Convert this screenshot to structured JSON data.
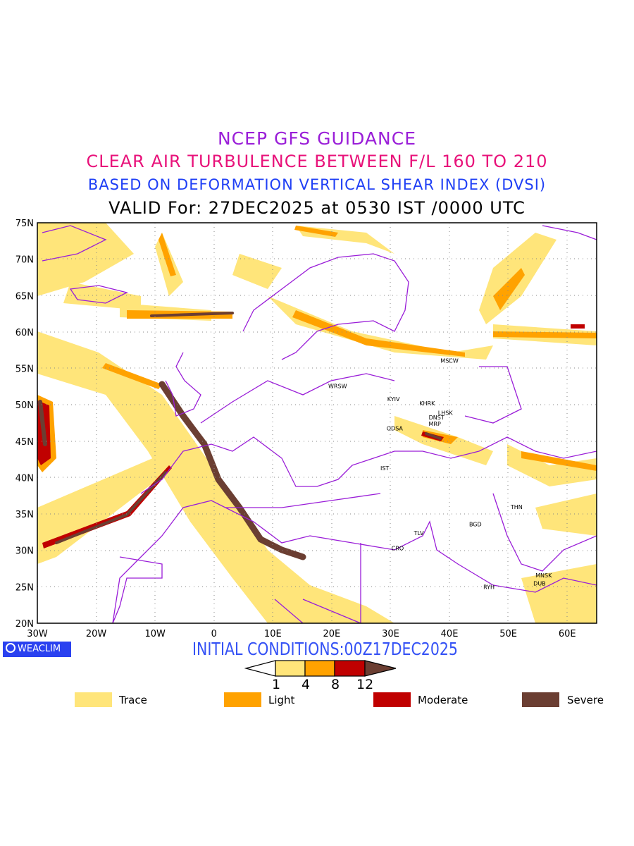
{
  "titles": {
    "line1": "NCEP GFS GUIDANCE",
    "line2": "CLEAR AIR TURBULENCE BETWEEN F/L 160 TO 210",
    "line3": "BASED ON DEFORMATION VERTICAL SHEAR INDEX (DVSI)",
    "line4": "VALID For: 27DEC2025 at 0530 IST /0000 UTC"
  },
  "axes": {
    "lat_labels": [
      "75N",
      "70N",
      "65N",
      "60N",
      "55N",
      "50N",
      "45N",
      "40N",
      "35N",
      "30N",
      "25N",
      "20N"
    ],
    "lon_labels": [
      "30W",
      "20W",
      "10W",
      "0",
      "10E",
      "20E",
      "30E",
      "40E",
      "50E",
      "60E"
    ]
  },
  "cities": [
    {
      "name": "MSCW",
      "lon": 40.0,
      "lat": 55.8
    },
    {
      "name": "WRSW",
      "lon": 21.0,
      "lat": 52.3
    },
    {
      "name": "KYIV",
      "lon": 30.5,
      "lat": 50.5
    },
    {
      "name": "KHRK",
      "lon": 36.2,
      "lat": 49.9
    },
    {
      "name": "LHSK",
      "lon": 39.3,
      "lat": 48.6
    },
    {
      "name": "DNST",
      "lon": 37.8,
      "lat": 48.0
    },
    {
      "name": "MRP",
      "lon": 37.5,
      "lat": 47.1
    },
    {
      "name": "ODSA",
      "lon": 30.7,
      "lat": 46.5
    },
    {
      "name": "IST",
      "lon": 29.0,
      "lat": 41.0
    },
    {
      "name": "THN",
      "lon": 51.4,
      "lat": 35.7
    },
    {
      "name": "BGD",
      "lon": 44.4,
      "lat": 33.3
    },
    {
      "name": "TLV",
      "lon": 34.8,
      "lat": 32.1
    },
    {
      "name": "CRO",
      "lon": 31.2,
      "lat": 30.0
    },
    {
      "name": "MNSK",
      "lon": 56.0,
      "lat": 26.3
    },
    {
      "name": "RYH",
      "lon": 46.7,
      "lat": 24.7
    },
    {
      "name": "DUB",
      "lon": 55.3,
      "lat": 25.2
    }
  ],
  "branding": "WEACLIM",
  "initial_conditions": "INITIAL CONDITIONS:00Z17DEC2025",
  "colorbar": {
    "ticks": [
      "1",
      "4",
      "8",
      "12"
    ],
    "colors": [
      "#ffe57a",
      "#ffa200",
      "#c00000",
      "#6b3e32"
    ]
  },
  "legend": [
    {
      "label": "Trace",
      "color": "#ffe57a"
    },
    {
      "label": "Light",
      "color": "#ffa200"
    },
    {
      "label": "Moderate",
      "color": "#c00000"
    },
    {
      "label": "Severe",
      "color": "#6b3e32"
    }
  ],
  "colors": {
    "border": "#9a1ed8"
  }
}
